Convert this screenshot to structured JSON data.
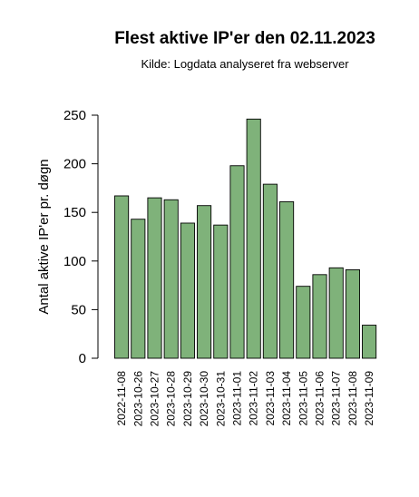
{
  "chart_data": {
    "type": "bar",
    "title": "Flest aktive IP'er den 02.11.2023",
    "subtitle": "Kilde: Logdata analyseret fra webserver",
    "xlabel": "",
    "ylabel": "Antal aktive IP'er pr. døgn",
    "ylim": [
      0,
      250
    ],
    "yticks": [
      0,
      50,
      100,
      150,
      200,
      250
    ],
    "grid": false,
    "bar_color": "#7fb27a",
    "categories": [
      "2022-11-08",
      "2023-10-26",
      "2023-10-27",
      "2023-10-28",
      "2023-10-29",
      "2023-10-30",
      "2023-10-31",
      "2023-11-01",
      "2023-11-02",
      "2023-11-03",
      "2023-11-04",
      "2023-11-05",
      "2023-11-06",
      "2023-11-07",
      "2023-11-08",
      "2023-11-09"
    ],
    "values": [
      167,
      143,
      165,
      163,
      139,
      157,
      137,
      198,
      246,
      179,
      161,
      74,
      86,
      93,
      91,
      34
    ]
  }
}
